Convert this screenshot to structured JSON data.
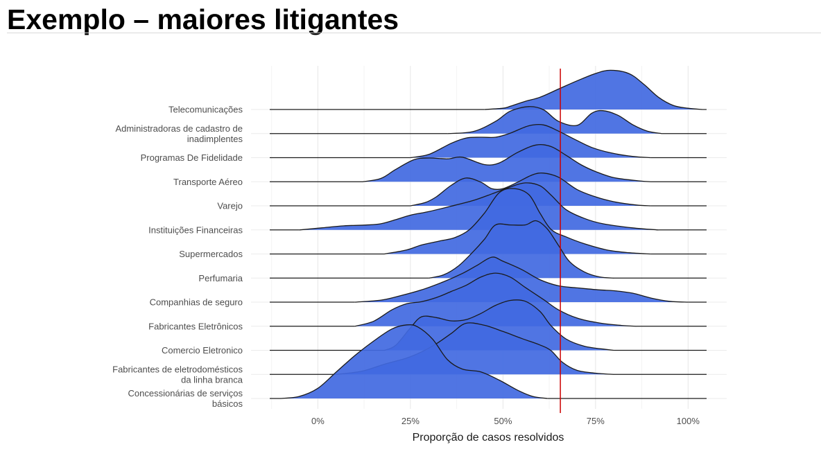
{
  "slide": {
    "title": "Exemplo – maiores litigantes"
  },
  "chart_data": {
    "type": "ridgeline",
    "xlabel": "Proporção de casos resolvidos",
    "xlim": [
      -0.13,
      1.05
    ],
    "x_ticks": [
      {
        "value": 0,
        "label": "0%"
      },
      {
        "value": 0.25,
        "label": "25%"
      },
      {
        "value": 0.5,
        "label": "50%"
      },
      {
        "value": 0.75,
        "label": "75%"
      },
      {
        "value": 1.0,
        "label": "100%"
      }
    ],
    "fill_color": "#4169e1",
    "reference_line": {
      "x": 0.655,
      "color": "#cc0000"
    },
    "categories": [
      {
        "label": [
          "Telecomunicações"
        ],
        "curve": [
          [
            0.45,
            0
          ],
          [
            0.5,
            0.03
          ],
          [
            0.52,
            0.08
          ],
          [
            0.56,
            0.2
          ],
          [
            0.6,
            0.3
          ],
          [
            0.65,
            0.5
          ],
          [
            0.7,
            0.7
          ],
          [
            0.75,
            0.88
          ],
          [
            0.79,
            0.96
          ],
          [
            0.84,
            0.88
          ],
          [
            0.88,
            0.62
          ],
          [
            0.92,
            0.3
          ],
          [
            0.96,
            0.1
          ],
          [
            1.0,
            0.03
          ],
          [
            1.04,
            0
          ]
        ]
      },
      {
        "label": [
          "Administradoras de cadastro de",
          "inadimplentes"
        ],
        "curve": [
          [
            0.35,
            0
          ],
          [
            0.42,
            0.05
          ],
          [
            0.48,
            0.3
          ],
          [
            0.52,
            0.55
          ],
          [
            0.57,
            0.66
          ],
          [
            0.61,
            0.58
          ],
          [
            0.65,
            0.3
          ],
          [
            0.7,
            0.2
          ],
          [
            0.74,
            0.5
          ],
          [
            0.77,
            0.56
          ],
          [
            0.81,
            0.45
          ],
          [
            0.85,
            0.22
          ],
          [
            0.89,
            0.06
          ],
          [
            0.93,
            0
          ]
        ]
      },
      {
        "label": [
          "Programas De Fidelidade"
        ],
        "curve": [
          [
            0.25,
            0
          ],
          [
            0.3,
            0.08
          ],
          [
            0.36,
            0.35
          ],
          [
            0.4,
            0.48
          ],
          [
            0.44,
            0.5
          ],
          [
            0.48,
            0.5
          ],
          [
            0.52,
            0.6
          ],
          [
            0.57,
            0.78
          ],
          [
            0.61,
            0.8
          ],
          [
            0.65,
            0.65
          ],
          [
            0.7,
            0.42
          ],
          [
            0.74,
            0.25
          ],
          [
            0.79,
            0.12
          ],
          [
            0.85,
            0.03
          ],
          [
            0.9,
            0
          ]
        ]
      },
      {
        "label": [
          "Transporte Aéreo"
        ],
        "curve": [
          [
            0.12,
            0
          ],
          [
            0.17,
            0.08
          ],
          [
            0.21,
            0.3
          ],
          [
            0.26,
            0.54
          ],
          [
            0.3,
            0.58
          ],
          [
            0.35,
            0.56
          ],
          [
            0.39,
            0.6
          ],
          [
            0.45,
            0.42
          ],
          [
            0.49,
            0.46
          ],
          [
            0.54,
            0.72
          ],
          [
            0.59,
            0.9
          ],
          [
            0.63,
            0.86
          ],
          [
            0.67,
            0.65
          ],
          [
            0.71,
            0.42
          ],
          [
            0.75,
            0.25
          ],
          [
            0.8,
            0.1
          ],
          [
            0.87,
            0.02
          ],
          [
            0.9,
            0
          ]
        ]
      },
      {
        "label": [
          "Varejo"
        ],
        "curve": [
          [
            0.25,
            0
          ],
          [
            0.29,
            0.08
          ],
          [
            0.32,
            0.22
          ],
          [
            0.36,
            0.5
          ],
          [
            0.4,
            0.68
          ],
          [
            0.44,
            0.58
          ],
          [
            0.47,
            0.42
          ],
          [
            0.5,
            0.42
          ],
          [
            0.54,
            0.58
          ],
          [
            0.58,
            0.76
          ],
          [
            0.61,
            0.8
          ],
          [
            0.65,
            0.7
          ],
          [
            0.7,
            0.4
          ],
          [
            0.75,
            0.22
          ],
          [
            0.8,
            0.1
          ],
          [
            0.86,
            0.02
          ],
          [
            0.9,
            0
          ]
        ]
      },
      {
        "label": [
          "Instituições Financeiras"
        ],
        "curve": [
          [
            -0.05,
            0
          ],
          [
            0.01,
            0.05
          ],
          [
            0.07,
            0.1
          ],
          [
            0.13,
            0.12
          ],
          [
            0.17,
            0.15
          ],
          [
            0.21,
            0.25
          ],
          [
            0.25,
            0.36
          ],
          [
            0.3,
            0.45
          ],
          [
            0.36,
            0.58
          ],
          [
            0.42,
            0.72
          ],
          [
            0.47,
            0.88
          ],
          [
            0.52,
            1.05
          ],
          [
            0.56,
            1.15
          ],
          [
            0.6,
            1.08
          ],
          [
            0.63,
            0.85
          ],
          [
            0.67,
            0.5
          ],
          [
            0.72,
            0.28
          ],
          [
            0.77,
            0.15
          ],
          [
            0.85,
            0.05
          ],
          [
            0.92,
            0
          ]
        ]
      },
      {
        "label": [
          "Supermercados"
        ],
        "curve": [
          [
            0.18,
            0
          ],
          [
            0.24,
            0.1
          ],
          [
            0.28,
            0.22
          ],
          [
            0.33,
            0.32
          ],
          [
            0.37,
            0.4
          ],
          [
            0.41,
            0.6
          ],
          [
            0.45,
            1.0
          ],
          [
            0.49,
            1.5
          ],
          [
            0.53,
            1.6
          ],
          [
            0.57,
            1.45
          ],
          [
            0.6,
            1.0
          ],
          [
            0.63,
            0.6
          ],
          [
            0.67,
            0.42
          ],
          [
            0.72,
            0.25
          ],
          [
            0.78,
            0.1
          ],
          [
            0.84,
            0.03
          ],
          [
            0.9,
            0
          ]
        ]
      },
      {
        "label": [
          "Perfumaria"
        ],
        "curve": [
          [
            0.3,
            0
          ],
          [
            0.34,
            0.08
          ],
          [
            0.38,
            0.3
          ],
          [
            0.42,
            0.65
          ],
          [
            0.45,
            0.95
          ],
          [
            0.48,
            1.3
          ],
          [
            0.52,
            1.3
          ],
          [
            0.56,
            1.3
          ],
          [
            0.59,
            1.4
          ],
          [
            0.62,
            1.2
          ],
          [
            0.65,
            0.8
          ],
          [
            0.68,
            0.4
          ],
          [
            0.72,
            0.15
          ],
          [
            0.76,
            0.03
          ],
          [
            0.8,
            0
          ]
        ]
      },
      {
        "label": [
          "Companhias de seguro"
        ],
        "curve": [
          [
            0.1,
            0
          ],
          [
            0.17,
            0.05
          ],
          [
            0.22,
            0.15
          ],
          [
            0.28,
            0.3
          ],
          [
            0.34,
            0.5
          ],
          [
            0.39,
            0.7
          ],
          [
            0.43,
            0.9
          ],
          [
            0.47,
            1.1
          ],
          [
            0.5,
            1.0
          ],
          [
            0.55,
            0.8
          ],
          [
            0.6,
            0.55
          ],
          [
            0.65,
            0.4
          ],
          [
            0.7,
            0.35
          ],
          [
            0.76,
            0.3
          ],
          [
            0.8,
            0.28
          ],
          [
            0.85,
            0.22
          ],
          [
            0.9,
            0.1
          ],
          [
            0.95,
            0.02
          ],
          [
            1.0,
            0
          ]
        ]
      },
      {
        "label": [
          "Fabricantes Eletrônicos"
        ],
        "curve": [
          [
            0.1,
            0
          ],
          [
            0.15,
            0.12
          ],
          [
            0.2,
            0.4
          ],
          [
            0.24,
            0.55
          ],
          [
            0.28,
            0.6
          ],
          [
            0.32,
            0.7
          ],
          [
            0.36,
            0.85
          ],
          [
            0.4,
            1.0
          ],
          [
            0.44,
            1.2
          ],
          [
            0.48,
            1.3
          ],
          [
            0.52,
            1.2
          ],
          [
            0.56,
            0.95
          ],
          [
            0.61,
            0.65
          ],
          [
            0.65,
            0.4
          ],
          [
            0.7,
            0.2
          ],
          [
            0.76,
            0.08
          ],
          [
            0.82,
            0.02
          ],
          [
            0.86,
            0
          ]
        ]
      },
      {
        "label": [
          "Comercio Eletronico"
        ],
        "curve": [
          [
            0.18,
            0
          ],
          [
            0.21,
            0.12
          ],
          [
            0.25,
            0.55
          ],
          [
            0.28,
            0.82
          ],
          [
            0.32,
            0.8
          ],
          [
            0.36,
            0.72
          ],
          [
            0.4,
            0.75
          ],
          [
            0.44,
            0.9
          ],
          [
            0.48,
            1.1
          ],
          [
            0.52,
            1.22
          ],
          [
            0.56,
            1.2
          ],
          [
            0.6,
            0.95
          ],
          [
            0.63,
            0.6
          ],
          [
            0.67,
            0.28
          ],
          [
            0.72,
            0.1
          ],
          [
            0.78,
            0.02
          ],
          [
            0.8,
            0
          ]
        ]
      },
      {
        "label": [
          "Fabricantes de eletrodomésticos",
          "da linha branca"
        ],
        "curve": [
          [
            0.05,
            0
          ],
          [
            0.12,
            0.08
          ],
          [
            0.18,
            0.25
          ],
          [
            0.24,
            0.4
          ],
          [
            0.28,
            0.55
          ],
          [
            0.32,
            0.75
          ],
          [
            0.36,
            1.0
          ],
          [
            0.4,
            1.25
          ],
          [
            0.45,
            1.2
          ],
          [
            0.5,
            1.05
          ],
          [
            0.55,
            0.88
          ],
          [
            0.6,
            0.72
          ],
          [
            0.63,
            0.58
          ],
          [
            0.66,
            0.3
          ],
          [
            0.7,
            0.1
          ],
          [
            0.75,
            0.03
          ],
          [
            0.8,
            0
          ]
        ]
      },
      {
        "label": [
          "Concessionárias de serviços",
          "básicos"
        ],
        "curve": [
          [
            -0.1,
            0
          ],
          [
            -0.05,
            0.05
          ],
          [
            0,
            0.25
          ],
          [
            0.05,
            0.65
          ],
          [
            0.1,
            1.05
          ],
          [
            0.15,
            1.4
          ],
          [
            0.2,
            1.7
          ],
          [
            0.24,
            1.8
          ],
          [
            0.27,
            1.75
          ],
          [
            0.31,
            1.45
          ],
          [
            0.35,
            0.95
          ],
          [
            0.39,
            0.72
          ],
          [
            0.44,
            0.65
          ],
          [
            0.49,
            0.45
          ],
          [
            0.54,
            0.2
          ],
          [
            0.58,
            0.05
          ],
          [
            0.62,
            0
          ]
        ]
      }
    ]
  }
}
